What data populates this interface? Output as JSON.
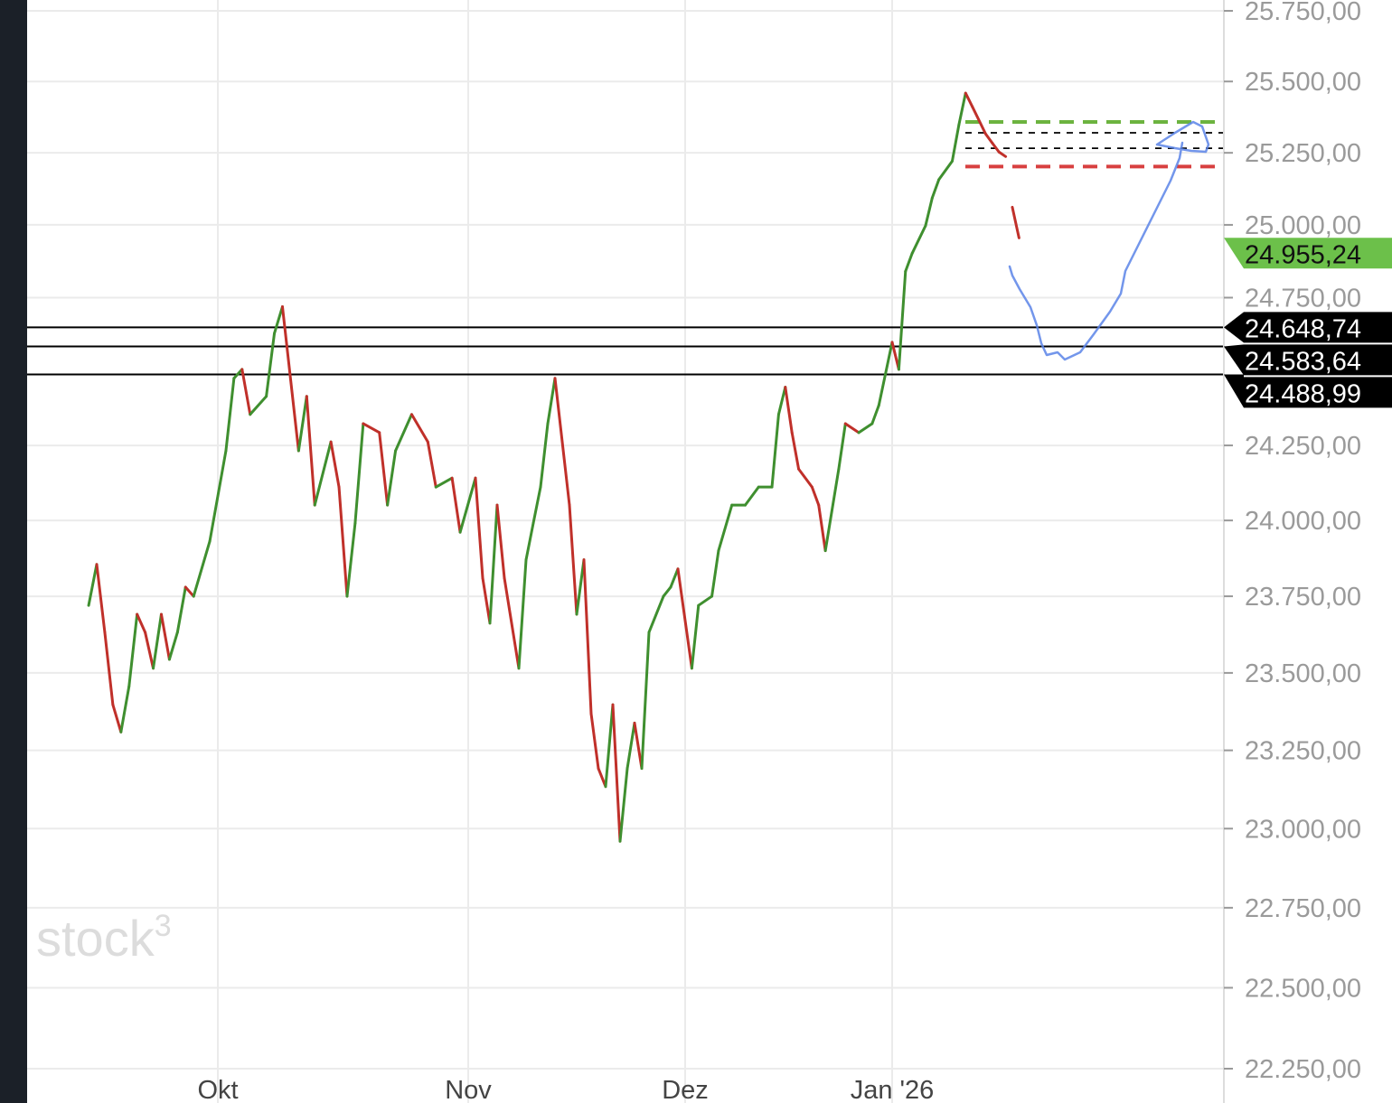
{
  "chart_data": {
    "type": "line",
    "title": "",
    "xlabel": "",
    "ylabel": "",
    "y_scale": "log",
    "ylim": [
      22250,
      25750
    ],
    "grid": true,
    "y_ticks": [
      25750,
      25500,
      25250,
      25000,
      24750,
      24250,
      24000,
      23750,
      23500,
      23250,
      23000,
      22750,
      22500,
      22250
    ],
    "y_tick_labels": [
      "25.750,00",
      "25.500,00",
      "25.250,00",
      "25.000,00",
      "24.750,00",
      "24.250,00",
      "24.000,00",
      "23.750,00",
      "23.500,00",
      "23.250,00",
      "23.000,00",
      "22.750,00",
      "22.500,00",
      "22.250,00"
    ],
    "x_ticks": [
      "2025-10-01",
      "2025-11-01",
      "2025-12-01",
      "2026-01-01"
    ],
    "x_tick_labels": [
      "Okt",
      "Nov",
      "Dez",
      "Jan '26"
    ],
    "colors": {
      "up": "#3f8f2f",
      "down": "#c0302a",
      "last_price_tag": "#6cc04a",
      "level_tag": "#000000",
      "target_dashed": "#6cb33f",
      "stop_dashed": "#d84040",
      "drawing": "#5b84e8"
    },
    "series": [
      {
        "dates": [
          "2025-09-15",
          "2025-09-16",
          "2025-09-17",
          "2025-09-18",
          "2025-09-19",
          "2025-09-20",
          "2025-09-21",
          "2025-09-22",
          "2025-09-23",
          "2025-09-24",
          "2025-09-25",
          "2025-09-26",
          "2025-09-27",
          "2025-09-28",
          "2025-09-30",
          "2025-10-02",
          "2025-10-03",
          "2025-10-04",
          "2025-10-05",
          "2025-10-07",
          "2025-10-08",
          "2025-10-09",
          "2025-10-11",
          "2025-10-12",
          "2025-10-13",
          "2025-10-15",
          "2025-10-16",
          "2025-10-17",
          "2025-10-18",
          "2025-10-19",
          "2025-10-21",
          "2025-10-22",
          "2025-10-23",
          "2025-10-25",
          "2025-10-27",
          "2025-10-28",
          "2025-10-30",
          "2025-10-31",
          "2025-11-02",
          "2025-11-03",
          "2025-11-04",
          "2025-11-05",
          "2025-11-06",
          "2025-11-08",
          "2025-11-09",
          "2025-11-10",
          "2025-11-11",
          "2025-11-12",
          "2025-11-13",
          "2025-11-15",
          "2025-11-16",
          "2025-11-17",
          "2025-11-18",
          "2025-11-19",
          "2025-11-20",
          "2025-11-21",
          "2025-11-22",
          "2025-11-23",
          "2025-11-24",
          "2025-11-25",
          "2025-11-26",
          "2025-11-28",
          "2025-11-29",
          "2025-11-30",
          "2025-12-02",
          "2025-12-03",
          "2025-12-05",
          "2025-12-06",
          "2025-12-08",
          "2025-12-10",
          "2025-12-12",
          "2025-12-14",
          "2025-12-15",
          "2025-12-16",
          "2025-12-17",
          "2025-12-18",
          "2025-12-20",
          "2025-12-21",
          "2025-12-22",
          "2025-12-24",
          "2025-12-25",
          "2025-12-27",
          "2025-12-29",
          "2025-12-30",
          "2026-01-01",
          "2026-01-02",
          "2026-01-03",
          "2026-01-04",
          "2026-01-06",
          "2026-01-07",
          "2026-01-08",
          "2026-01-10",
          "2026-01-11",
          "2026-01-12",
          "2026-01-13",
          "2026-01-15",
          "2026-01-16",
          "2026-01-17",
          "2026-01-18",
          "2026-01-19",
          "2026-01-20"
        ],
        "values": [
          23720,
          23855,
          23632,
          23397,
          23309,
          23456,
          23691,
          23632,
          23515,
          23691,
          23544,
          23632,
          23780,
          23750,
          23931,
          24232,
          24476,
          24506,
          24354,
          24415,
          24628,
          24719,
          24232,
          24415,
          24051,
          24262,
          24111,
          23750,
          23991,
          24323,
          24293,
          24051,
          24232,
          24354,
          24262,
          24111,
          24141,
          23961,
          24141,
          23810,
          23662,
          24051,
          23810,
          23515,
          23870,
          23991,
          24111,
          24323,
          24476,
          24051,
          23691,
          23870,
          23368,
          23192,
          23134,
          23397,
          22960,
          23192,
          23338,
          23192,
          23632,
          23750,
          23780,
          23840,
          23515,
          23720,
          23750,
          23900,
          24051,
          24051,
          24111,
          24111,
          24354,
          24446,
          24293,
          24171,
          24111,
          24051,
          23900,
          24171,
          24323,
          24293,
          24323,
          24384,
          24598,
          24506,
          24840,
          24902,
          24997,
          25093,
          25157,
          25221,
          25348,
          25459,
          25412,
          25316,
          25284,
          25253,
          25237,
          25061,
          24955
        ]
      }
    ],
    "horizontal_levels": [
      {
        "value": 24648.74,
        "label": "24.648,74",
        "style": "solid"
      },
      {
        "value": 24583.64,
        "label": "24.583,64",
        "style": "solid"
      },
      {
        "value": 24488.99,
        "label": "24.488,99",
        "style": "solid"
      }
    ],
    "dashed_levels": [
      {
        "value": 25358,
        "color": "target_dashed"
      },
      {
        "value": 25320,
        "color": "black"
      },
      {
        "value": 25266,
        "color": "black"
      },
      {
        "value": 25202,
        "color": "stop_dashed"
      }
    ],
    "last_price": {
      "value": 24955.24,
      "label": "24.955,24"
    }
  },
  "watermark": "stock³"
}
